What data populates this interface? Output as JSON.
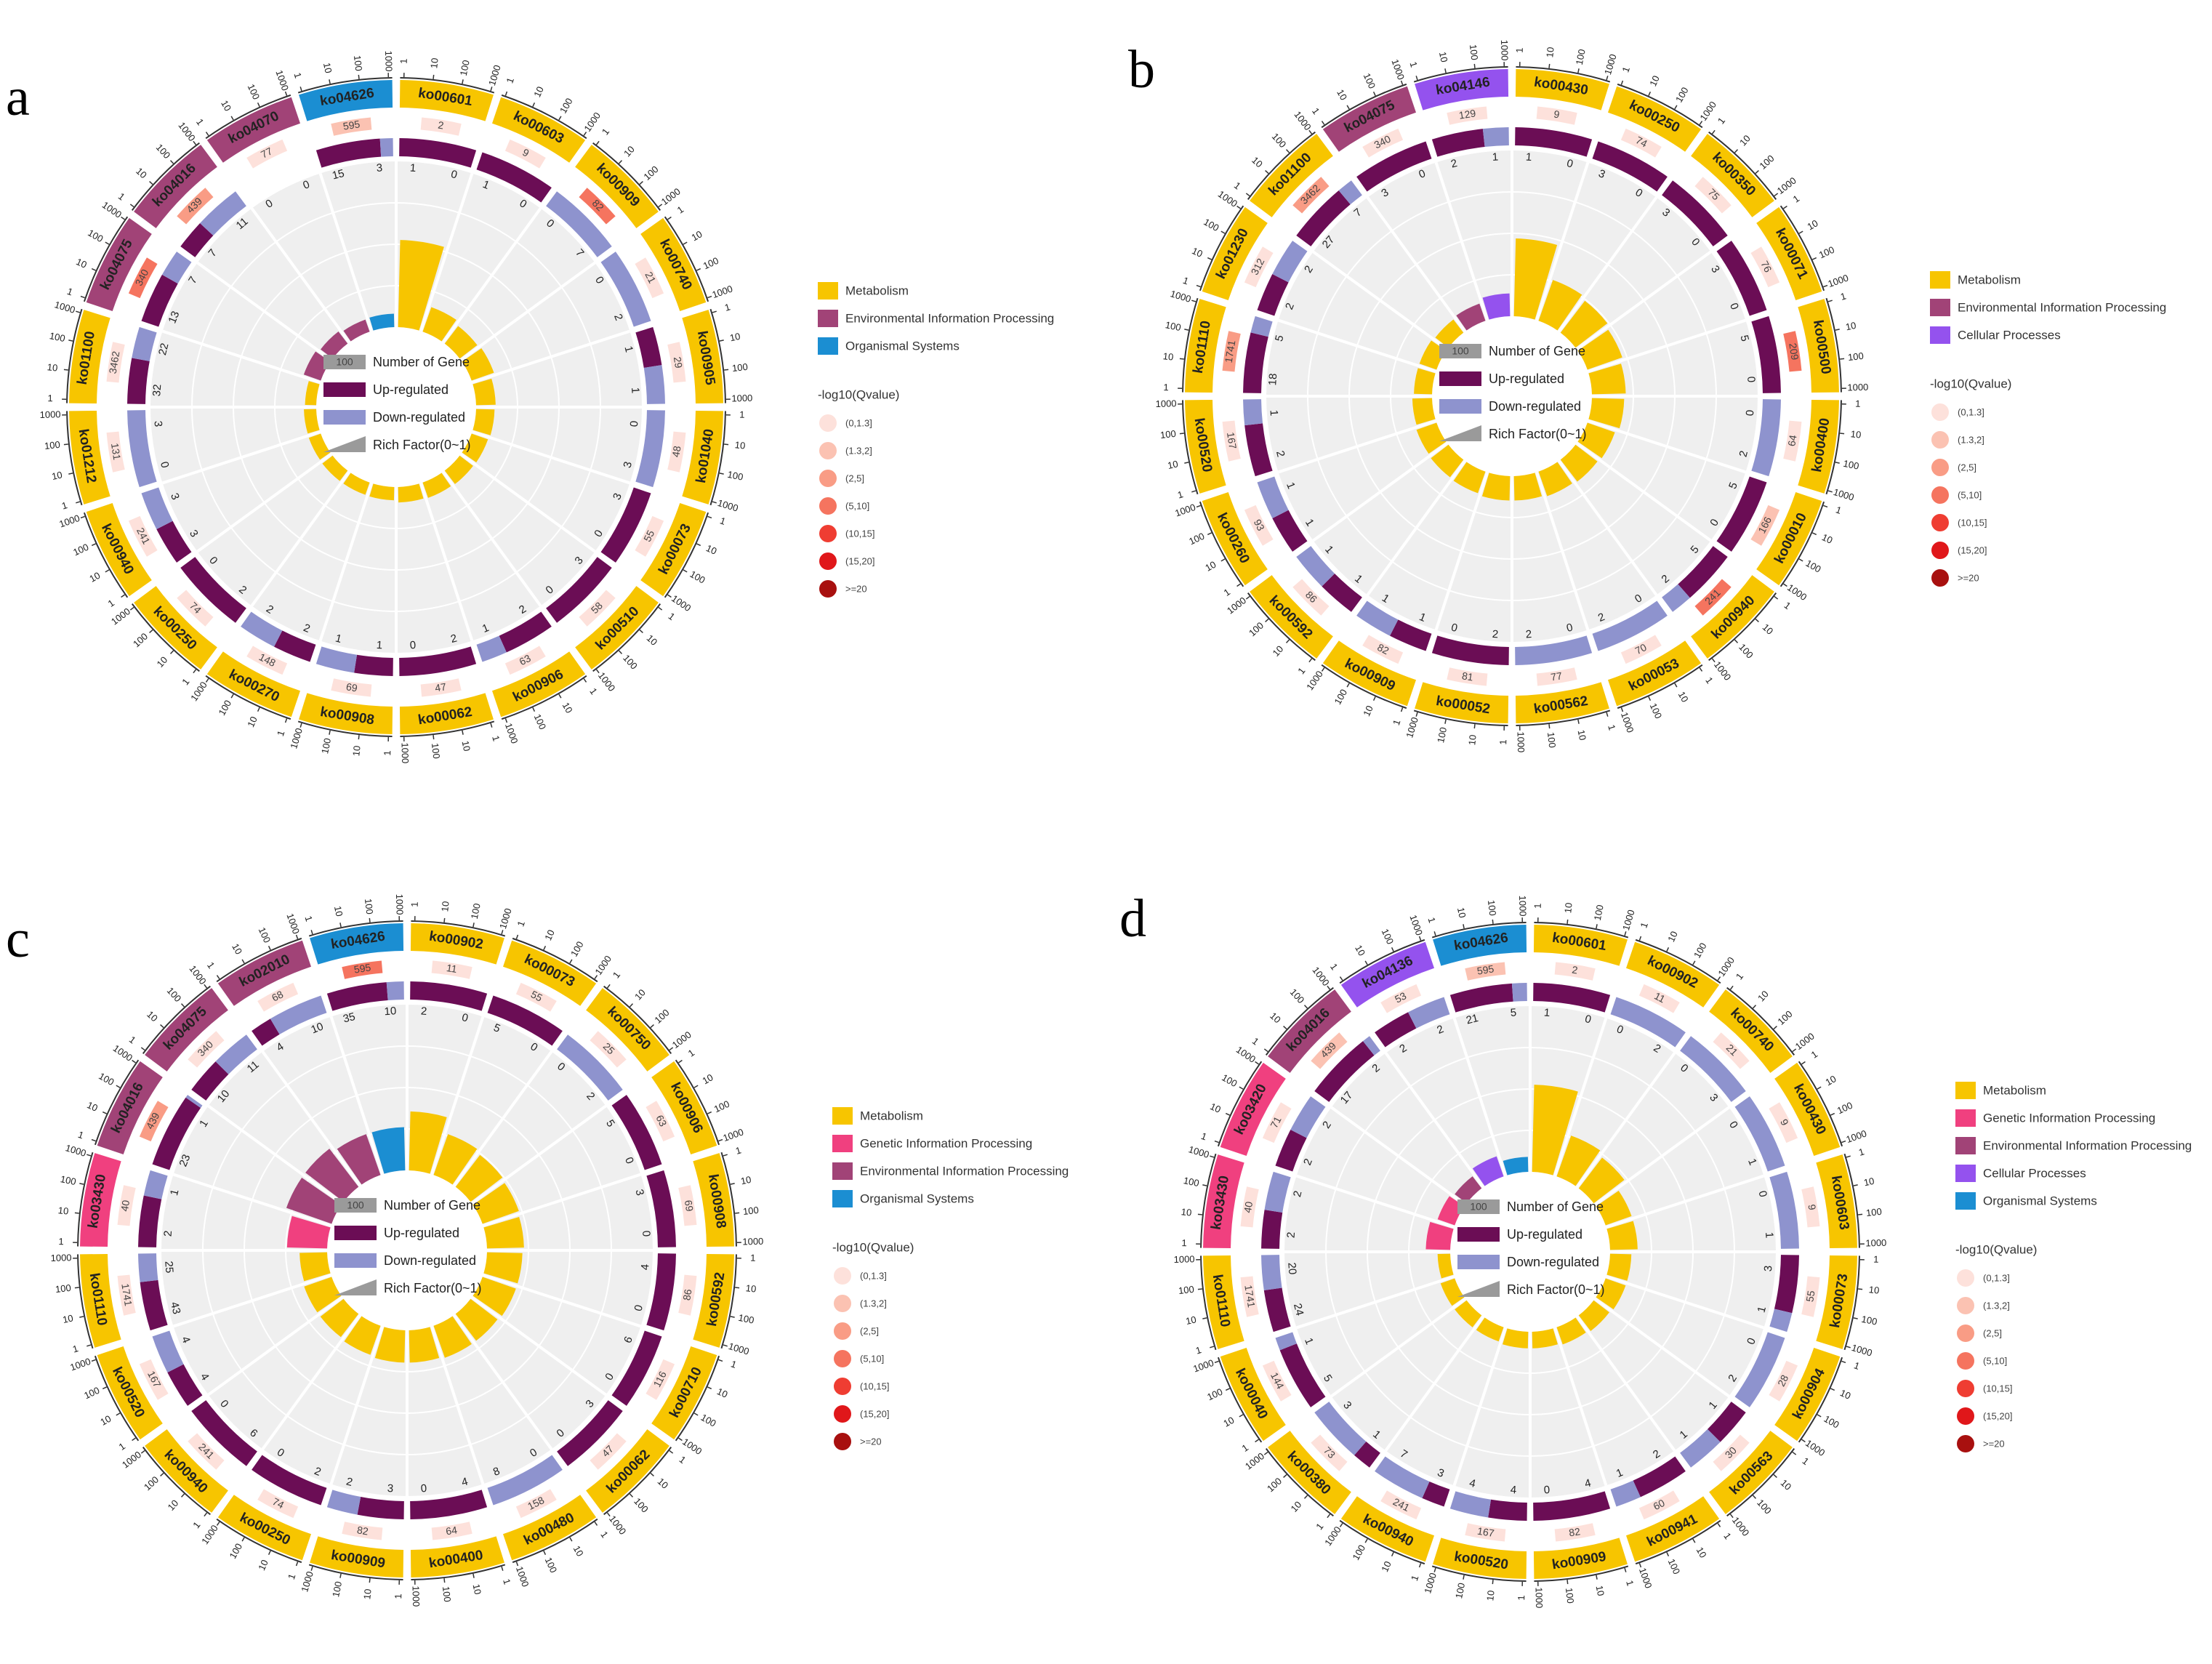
{
  "colors": {
    "Metabolism": "#F7C500",
    "Environmental Information Processing": "#A14377",
    "Organismal Systems": "#1B8ED2",
    "Cellular Processes": "#9452EE",
    "Genetic Information Processing": "#F0407F",
    "up": "#6B0D55",
    "down": "#8E93CE",
    "q": [
      "#FDE1DB",
      "#FBC2B2",
      "#F99C85",
      "#F5745F",
      "#EF3D32",
      "#E0171A",
      "#A8100F"
    ]
  },
  "legend_common": {
    "inner": [
      "Number of Gene",
      "Up-regulated",
      "Down-regulated",
      "Rich Factor(0~1)"
    ],
    "inner_sample": "100",
    "q_title": "-log10(Qvalue)",
    "q_levels": [
      "(0,1.3]",
      "(1.3,2]",
      "(2,5]",
      "(5,10]",
      "(10,15]",
      "(15,20]",
      ">=20"
    ]
  },
  "chart_data": [
    {
      "type": "circos",
      "panel": "a",
      "scale_labels": [
        "1",
        "10",
        "100",
        "1000"
      ],
      "categories_legend": [
        "Metabolism",
        "Environmental Information Processing",
        "Organismal Systems"
      ],
      "terms": [
        {
          "id": "ko00601",
          "cat": "Metabolism",
          "bg": "2",
          "q": 0,
          "up": 1,
          "down": 0,
          "rf": 0.5
        },
        {
          "id": "ko00603",
          "cat": "Metabolism",
          "bg": "9",
          "q": 0,
          "up": 1,
          "down": 0,
          "rf": 0.11
        },
        {
          "id": "ko00909",
          "cat": "Metabolism",
          "bg": "82",
          "q": 3,
          "up": 0,
          "down": 7,
          "rf": 0.085
        },
        {
          "id": "ko00740",
          "cat": "Metabolism",
          "bg": "21",
          "q": 0,
          "up": 0,
          "down": 2,
          "rf": 0.095
        },
        {
          "id": "ko00905",
          "cat": "Metabolism",
          "bg": "29",
          "q": 0,
          "up": 1,
          "down": 1,
          "rf": 0.069
        },
        {
          "id": "ko01040",
          "cat": "Metabolism",
          "bg": "48",
          "q": 0,
          "up": 0,
          "down": 3,
          "rf": 0.062
        },
        {
          "id": "ko00073",
          "cat": "Metabolism",
          "bg": "55",
          "q": 0,
          "up": 3,
          "down": 0,
          "rf": 0.055
        },
        {
          "id": "ko00510",
          "cat": "Metabolism",
          "bg": "58",
          "q": 0,
          "up": 3,
          "down": 0,
          "rf": 0.052
        },
        {
          "id": "ko00906",
          "cat": "Metabolism",
          "bg": "63",
          "q": 0,
          "up": 2,
          "down": 1,
          "rf": 0.048
        },
        {
          "id": "ko00062",
          "cat": "Metabolism",
          "bg": "47",
          "q": 0,
          "up": 2,
          "down": 0,
          "rf": 0.043
        },
        {
          "id": "ko00908",
          "cat": "Metabolism",
          "bg": "69",
          "q": 0,
          "up": 1,
          "down": 1,
          "rf": 0.029
        },
        {
          "id": "ko00270",
          "cat": "Metabolism",
          "bg": "148",
          "q": 0,
          "up": 2,
          "down": 2,
          "rf": 0.027
        },
        {
          "id": "ko00250",
          "cat": "Metabolism",
          "bg": "74",
          "q": 0,
          "up": 2,
          "down": 0,
          "rf": 0.027
        },
        {
          "id": "ko00940",
          "cat": "Metabolism",
          "bg": "241",
          "q": 0,
          "up": 3,
          "down": 3,
          "rf": 0.025
        },
        {
          "id": "ko01212",
          "cat": "Metabolism",
          "bg": "131",
          "q": 0,
          "up": 0,
          "down": 3,
          "rf": 0.023
        },
        {
          "id": "ko01100",
          "cat": "Metabolism",
          "bg": "3462",
          "q": 0,
          "up": 32,
          "down": 22,
          "rf": 0.016
        },
        {
          "id": "ko04075",
          "cat": "Environmental Information Processing",
          "bg": "340",
          "q": 3,
          "up": 13,
          "down": 7,
          "rf": 0.059
        },
        {
          "id": "ko04016",
          "cat": "Environmental Information Processing",
          "bg": "439",
          "q": 2,
          "up": 7,
          "down": 11,
          "rf": 0.041
        },
        {
          "id": "ko04070",
          "cat": "Environmental Information Processing",
          "bg": "77",
          "q": 0,
          "up": 0,
          "down": 0,
          "rf": 0.026
        },
        {
          "id": "ko04626",
          "cat": "Organismal Systems",
          "bg": "595",
          "q": 1,
          "up": 15,
          "down": 3,
          "rf": 0.03
        }
      ]
    },
    {
      "type": "circos",
      "panel": "b",
      "scale_labels": [
        "1",
        "10",
        "100",
        "1000"
      ],
      "categories_legend": [
        "Metabolism",
        "Environmental Information Processing",
        "Cellular Processes"
      ],
      "terms": [
        {
          "id": "ko00430",
          "cat": "Metabolism",
          "bg": "9",
          "q": 0,
          "up": 1,
          "down": 0,
          "rf": 0.44
        },
        {
          "id": "ko00250",
          "cat": "Metabolism",
          "bg": "74",
          "q": 0,
          "up": 3,
          "down": 0,
          "rf": 0.22
        },
        {
          "id": "ko00350",
          "cat": "Metabolism",
          "bg": "75",
          "q": 0,
          "up": 3,
          "down": 0,
          "rf": 0.2
        },
        {
          "id": "ko00071",
          "cat": "Metabolism",
          "bg": "76",
          "q": 0,
          "up": 3,
          "down": 0,
          "rf": 0.18
        },
        {
          "id": "ko00500",
          "cat": "Metabolism",
          "bg": "209",
          "q": 3,
          "up": 5,
          "down": 0,
          "rf": 0.16
        },
        {
          "id": "ko00400",
          "cat": "Metabolism",
          "bg": "64",
          "q": 0,
          "up": 0,
          "down": 2,
          "rf": 0.15
        },
        {
          "id": "ko00010",
          "cat": "Metabolism",
          "bg": "166",
          "q": 1,
          "up": 5,
          "down": 0,
          "rf": 0.13
        },
        {
          "id": "ko00940",
          "cat": "Metabolism",
          "bg": "241",
          "q": 3,
          "up": 5,
          "down": 2,
          "rf": 0.12
        },
        {
          "id": "ko00053",
          "cat": "Metabolism",
          "bg": "70",
          "q": 0,
          "up": 0,
          "down": 2,
          "rf": 0.11
        },
        {
          "id": "ko00562",
          "cat": "Metabolism",
          "bg": "77",
          "q": 0,
          "up": 0,
          "down": 2,
          "rf": 0.1
        },
        {
          "id": "ko00052",
          "cat": "Metabolism",
          "bg": "81",
          "q": 0,
          "up": 2,
          "down": 0,
          "rf": 0.1
        },
        {
          "id": "ko00909",
          "cat": "Metabolism",
          "bg": "82",
          "q": 0,
          "up": 1,
          "down": 1,
          "rf": 0.09
        },
        {
          "id": "ko00592",
          "cat": "Metabolism",
          "bg": "86",
          "q": 0,
          "up": 1,
          "down": 1,
          "rf": 0.085
        },
        {
          "id": "ko00260",
          "cat": "Metabolism",
          "bg": "93",
          "q": 0,
          "up": 1,
          "down": 1,
          "rf": 0.08
        },
        {
          "id": "ko00520",
          "cat": "Metabolism",
          "bg": "167",
          "q": 0,
          "up": 2,
          "down": 1,
          "rf": 0.07
        },
        {
          "id": "ko01110",
          "cat": "Metabolism",
          "bg": "1741",
          "q": 2,
          "up": 18,
          "down": 5,
          "rf": 0.06
        },
        {
          "id": "ko01230",
          "cat": "Metabolism",
          "bg": "312",
          "q": 0,
          "up": 2,
          "down": 2,
          "rf": 0.06
        },
        {
          "id": "ko01100",
          "cat": "Metabolism",
          "bg": "3462",
          "q": 2,
          "up": 27,
          "down": 7,
          "rf": 0.05
        },
        {
          "id": "ko04075",
          "cat": "Environmental Information Processing",
          "bg": "340",
          "q": 0,
          "up": 3,
          "down": 0,
          "rf": 0.06
        },
        {
          "id": "ko04146",
          "cat": "Cellular Processes",
          "bg": "129",
          "q": 0,
          "up": 2,
          "down": 1,
          "rf": 0.09
        }
      ]
    },
    {
      "type": "circos",
      "panel": "c",
      "scale_labels": [
        "1",
        "10",
        "100",
        "1000"
      ],
      "categories_legend": [
        "Metabolism",
        "Genetic Information Processing",
        "Environmental Information Processing",
        "Organismal Systems"
      ],
      "terms": [
        {
          "id": "ko00902",
          "cat": "Metabolism",
          "bg": "11",
          "q": 0,
          "up": 2,
          "down": 0,
          "rf": 0.32
        },
        {
          "id": "ko00073",
          "cat": "Metabolism",
          "bg": "55",
          "q": 0,
          "up": 5,
          "down": 0,
          "rf": 0.22
        },
        {
          "id": "ko00750",
          "cat": "Metabolism",
          "bg": "25",
          "q": 0,
          "up": 0,
          "down": 2,
          "rf": 0.2
        },
        {
          "id": "ko00906",
          "cat": "Metabolism",
          "bg": "63",
          "q": 0,
          "up": 5,
          "down": 0,
          "rf": 0.19
        },
        {
          "id": "ko00908",
          "cat": "Metabolism",
          "bg": "69",
          "q": 0,
          "up": 3,
          "down": 0,
          "rf": 0.18
        },
        {
          "id": "ko00592",
          "cat": "Metabolism",
          "bg": "86",
          "q": 0,
          "up": 4,
          "down": 0,
          "rf": 0.17
        },
        {
          "id": "ko00710",
          "cat": "Metabolism",
          "bg": "116",
          "q": 0,
          "up": 6,
          "down": 0,
          "rf": 0.17
        },
        {
          "id": "ko00062",
          "cat": "Metabolism",
          "bg": "47",
          "q": 0,
          "up": 3,
          "down": 0,
          "rf": 0.16
        },
        {
          "id": "ko00480",
          "cat": "Metabolism",
          "bg": "158",
          "q": 0,
          "up": 0,
          "down": 8,
          "rf": 0.16
        },
        {
          "id": "ko00400",
          "cat": "Metabolism",
          "bg": "64",
          "q": 0,
          "up": 4,
          "down": 0,
          "rf": 0.15
        },
        {
          "id": "ko00909",
          "cat": "Metabolism",
          "bg": "82",
          "q": 0,
          "up": 3,
          "down": 2,
          "rf": 0.15
        },
        {
          "id": "ko00250",
          "cat": "Metabolism",
          "bg": "74",
          "q": 0,
          "up": 2,
          "down": 0,
          "rf": 0.14
        },
        {
          "id": "ko00940",
          "cat": "Metabolism",
          "bg": "241",
          "q": 0,
          "up": 6,
          "down": 0,
          "rf": 0.13
        },
        {
          "id": "ko00520",
          "cat": "Metabolism",
          "bg": "167",
          "q": 0,
          "up": 4,
          "down": 4,
          "rf": 0.13
        },
        {
          "id": "ko01110",
          "cat": "Metabolism",
          "bg": "1741",
          "q": 0,
          "up": 43,
          "down": 25,
          "rf": 0.12
        },
        {
          "id": "ko03430",
          "cat": "Genetic Information Processing",
          "bg": "40",
          "q": 0,
          "up": 2,
          "down": 1,
          "rf": 0.2
        },
        {
          "id": "ko04016",
          "cat": "Environmental Information Processing",
          "bg": "439",
          "q": 2,
          "up": 23,
          "down": 1,
          "rf": 0.25
        },
        {
          "id": "ko04075",
          "cat": "Environmental Information Processing",
          "bg": "340",
          "q": 0,
          "up": 10,
          "down": 11,
          "rf": 0.25
        },
        {
          "id": "ko02010",
          "cat": "Environmental Information Processing",
          "bg": "68",
          "q": 0,
          "up": 4,
          "down": 10,
          "rf": 0.22
        },
        {
          "id": "ko04626",
          "cat": "Organismal Systems",
          "bg": "595",
          "q": 3,
          "up": 35,
          "down": 10,
          "rf": 0.22
        }
      ]
    },
    {
      "type": "circos",
      "panel": "d",
      "scale_labels": [
        "1",
        "10",
        "100",
        "1000"
      ],
      "categories_legend": [
        "Metabolism",
        "Genetic Information Processing",
        "Environmental Information Processing",
        "Cellular Processes",
        "Organismal Systems"
      ],
      "terms": [
        {
          "id": "ko00601",
          "cat": "Metabolism",
          "bg": "2",
          "q": 0,
          "up": 1,
          "down": 0,
          "rf": 0.5
        },
        {
          "id": "ko00902",
          "cat": "Metabolism",
          "bg": "11",
          "q": 0,
          "up": 0,
          "down": 2,
          "rf": 0.22
        },
        {
          "id": "ko00740",
          "cat": "Metabolism",
          "bg": "21",
          "q": 0,
          "up": 0,
          "down": 3,
          "rf": 0.19
        },
        {
          "id": "ko00430",
          "cat": "Metabolism",
          "bg": "9",
          "q": 0,
          "up": 0,
          "down": 1,
          "rf": 0.12
        },
        {
          "id": "ko00603",
          "cat": "Metabolism",
          "bg": "9",
          "q": 0,
          "up": 0,
          "down": 1,
          "rf": 0.12
        },
        {
          "id": "ko00073",
          "cat": "Metabolism",
          "bg": "55",
          "q": 0,
          "up": 3,
          "down": 1,
          "rf": 0.08
        },
        {
          "id": "ko00904",
          "cat": "Metabolism",
          "bg": "28",
          "q": 0,
          "up": 0,
          "down": 2,
          "rf": 0.08
        },
        {
          "id": "ko00563",
          "cat": "Metabolism",
          "bg": "30",
          "q": 0,
          "up": 1,
          "down": 1,
          "rf": 0.07
        },
        {
          "id": "ko00941",
          "cat": "Metabolism",
          "bg": "60",
          "q": 0,
          "up": 2,
          "down": 1,
          "rf": 0.06
        },
        {
          "id": "ko00909",
          "cat": "Metabolism",
          "bg": "82",
          "q": 0,
          "up": 4,
          "down": 0,
          "rf": 0.05
        },
        {
          "id": "ko00520",
          "cat": "Metabolism",
          "bg": "167",
          "q": 0,
          "up": 4,
          "down": 4,
          "rf": 0.05
        },
        {
          "id": "ko00940",
          "cat": "Metabolism",
          "bg": "241",
          "q": 0,
          "up": 3,
          "down": 7,
          "rf": 0.04
        },
        {
          "id": "ko00380",
          "cat": "Metabolism",
          "bg": "73",
          "q": 0,
          "up": 1,
          "down": 3,
          "rf": 0.04
        },
        {
          "id": "ko00040",
          "cat": "Metabolism",
          "bg": "144",
          "q": 0,
          "up": 5,
          "down": 1,
          "rf": 0.04
        },
        {
          "id": "ko01110",
          "cat": "Metabolism",
          "bg": "1741",
          "q": 0,
          "up": 24,
          "down": 20,
          "rf": 0.025
        },
        {
          "id": "ko03430",
          "cat": "Genetic Information Processing",
          "bg": "40",
          "q": 0,
          "up": 2,
          "down": 2,
          "rf": 0.1
        },
        {
          "id": "ko03420",
          "cat": "Genetic Information Processing",
          "bg": "71",
          "q": 0,
          "up": 2,
          "down": 2,
          "rf": 0.06
        },
        {
          "id": "ko04016",
          "cat": "Environmental Information Processing",
          "bg": "439",
          "q": 1,
          "up": 17,
          "down": 2,
          "rf": 0.04
        },
        {
          "id": "ko04136",
          "cat": "Cellular Processes",
          "bg": "53",
          "q": 0,
          "up": 2,
          "down": 2,
          "rf": 0.08
        },
        {
          "id": "ko04626",
          "cat": "Organismal Systems",
          "bg": "595",
          "q": 1,
          "up": 21,
          "down": 5,
          "rf": 0.04
        }
      ]
    }
  ]
}
